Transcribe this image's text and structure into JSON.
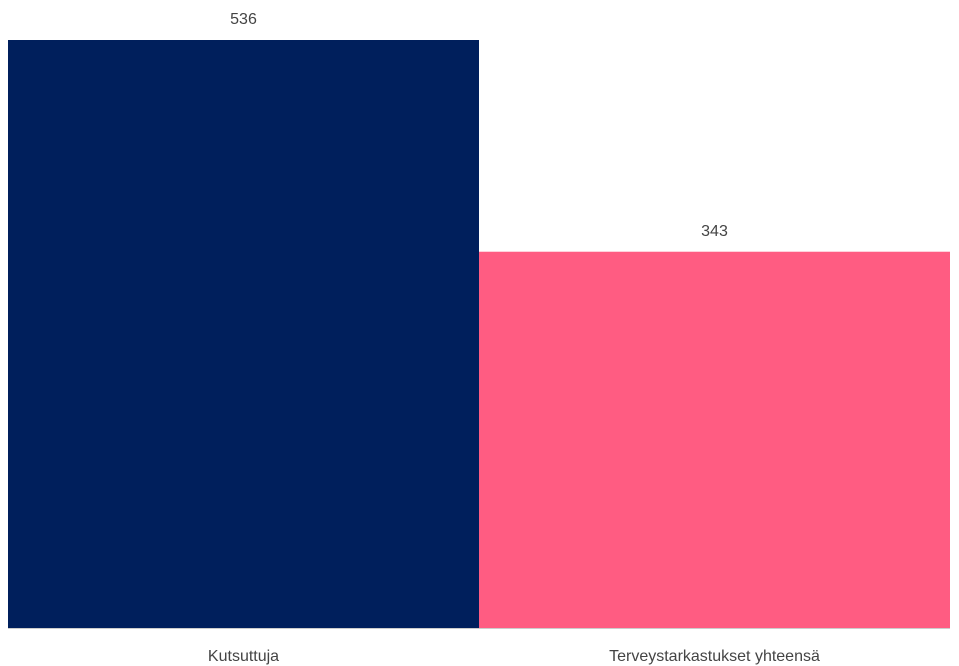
{
  "chart_data": {
    "type": "bar",
    "categories": [
      "Kutsuttuja",
      "Terveystarkastukset yhteensä"
    ],
    "values": [
      536,
      343
    ],
    "colors": [
      "#001f5c",
      "#ff5c82"
    ]
  }
}
